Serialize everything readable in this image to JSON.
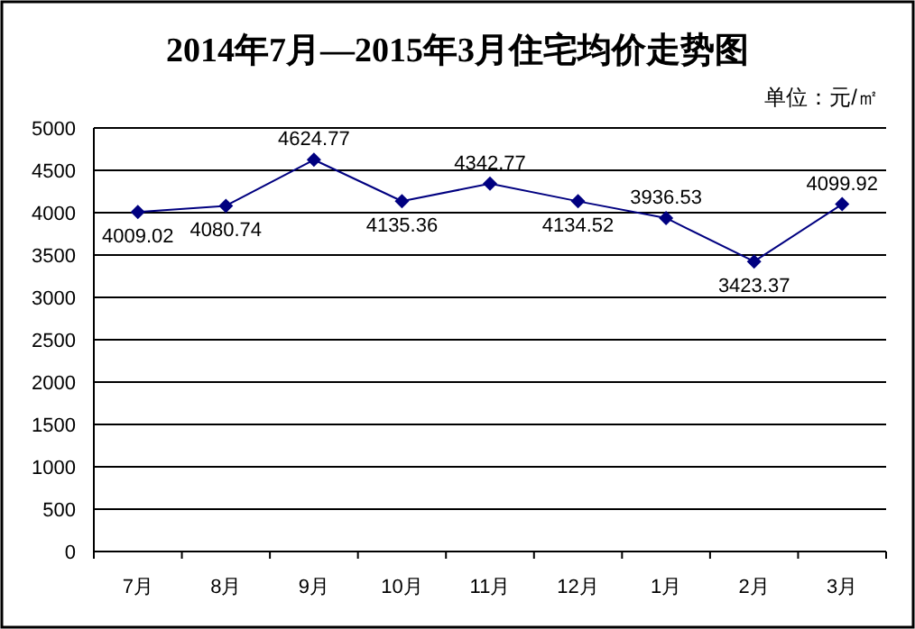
{
  "chart_data": {
    "type": "line",
    "title": "2014年7月—2015年3月住宅均价走势图",
    "annotations": [
      "单位：元/㎡"
    ],
    "categories": [
      "7月",
      "8月",
      "9月",
      "10月",
      "11月",
      "12月",
      "1月",
      "2月",
      "3月"
    ],
    "series": [
      {
        "color": "#000080",
        "values": [
          4009.02,
          4080.74,
          4624.77,
          4135.36,
          4342.77,
          4134.52,
          3936.53,
          3423.37,
          4099.92
        ]
      }
    ],
    "ylim": [
      0,
      5000
    ],
    "yticks": [
      0,
      500,
      1000,
      1500,
      2000,
      2500,
      3000,
      3500,
      4000,
      4500,
      5000
    ],
    "grid": "y",
    "marker": "diamond",
    "line_style": "solid",
    "data_labels": true
  }
}
